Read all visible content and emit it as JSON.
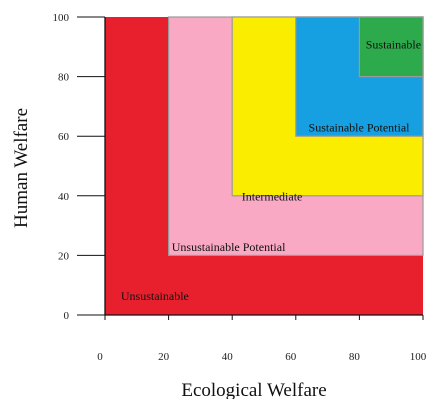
{
  "chart_data": {
    "type": "zone-diagram",
    "xlabel": "Ecological Welfare",
    "ylabel": "Human Welfare",
    "xlim": [
      0,
      100
    ],
    "ylim": [
      0,
      100
    ],
    "xticks": [
      "0",
      "20",
      "40",
      "60",
      "80",
      "100"
    ],
    "yticks": [
      "0",
      "20",
      "40",
      "60",
      "80",
      "100"
    ],
    "zones": [
      {
        "name": "Unsustainable",
        "x_min": 0,
        "y_min": 0,
        "color": "#e8202e"
      },
      {
        "name": "Unsustainable Potential",
        "x_min": 20,
        "y_min": 20,
        "color": "#f9a9c4"
      },
      {
        "name": "Intermediate",
        "x_min": 40,
        "y_min": 40,
        "color": "#fbed00"
      },
      {
        "name": "Sustainable Potential",
        "x_min": 60,
        "y_min": 60,
        "color": "#16a0e2"
      },
      {
        "name": "Sustainable",
        "x_min": 80,
        "y_min": 80,
        "color": "#2dab4c"
      }
    ]
  }
}
